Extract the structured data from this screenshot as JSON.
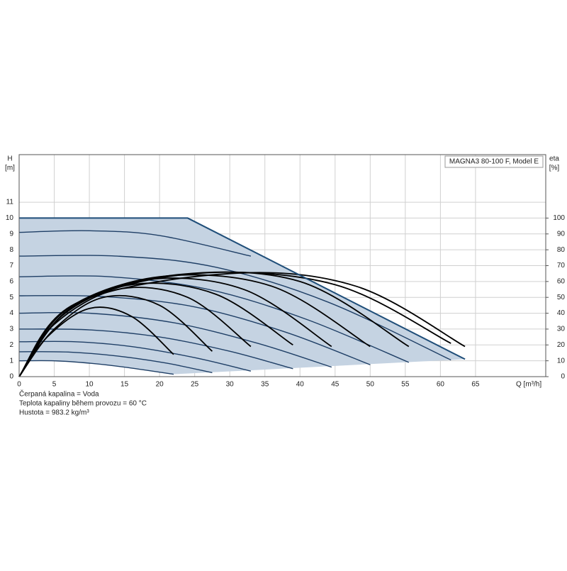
{
  "chart_data": {
    "type": "line",
    "title": "MAGNA3 80-100 F, Model E",
    "y_label": "H",
    "y_unit": "[m]",
    "y2_label": "eta",
    "y2_unit": "[%]",
    "x_label": "Q [m³/h]",
    "notes": [
      "Čerpaná kapalina = Voda",
      "Teplota kapaliny během provozu = 60 °C",
      "Hustota = 983.2 kg/m³"
    ],
    "xlim": [
      0,
      75
    ],
    "xticks": [
      0,
      5,
      10,
      15,
      20,
      25,
      30,
      35,
      40,
      45,
      50,
      55,
      60,
      65
    ],
    "ylim": [
      0,
      14
    ],
    "yticks": [
      0,
      1,
      2,
      3,
      4,
      5,
      6,
      7,
      8,
      9,
      10,
      11
    ],
    "y2lim": [
      0,
      140
    ],
    "y2ticks": [
      0,
      10,
      20,
      30,
      40,
      50,
      60,
      70,
      80,
      90,
      100
    ],
    "grid": true,
    "envelope": {
      "color": "#c5d3e2",
      "x": [
        0,
        24,
        63.5,
        22,
        15,
        10,
        5,
        0
      ],
      "values": [
        10,
        10,
        1.1,
        0.15,
        0.6,
        0.85,
        1.0,
        1.0
      ]
    },
    "boundary": {
      "color": "#1f4e79",
      "x": [
        0,
        24,
        63.5
      ],
      "values": [
        10,
        10,
        1.1
      ]
    },
    "series": [
      {
        "color": "#1f3f66",
        "x": [
          0,
          5,
          10,
          15,
          22
        ],
        "values": [
          1.0,
          1.0,
          0.85,
          0.6,
          0.15
        ]
      },
      {
        "color": "#1f3f66",
        "x": [
          0,
          7,
          14,
          21,
          27.5
        ],
        "values": [
          1.57,
          1.55,
          1.3,
          0.85,
          0.25
        ]
      },
      {
        "color": "#1f3f66",
        "x": [
          0,
          8,
          16,
          25,
          33
        ],
        "values": [
          2.2,
          2.2,
          1.9,
          1.2,
          0.35
        ]
      },
      {
        "color": "#1f3f66",
        "x": [
          0,
          10,
          20,
          30,
          39
        ],
        "values": [
          3.0,
          2.95,
          2.5,
          1.6,
          0.5
        ]
      },
      {
        "color": "#1f3f66",
        "x": [
          0,
          10,
          22,
          34,
          44.5
        ],
        "values": [
          4.0,
          4.0,
          3.4,
          2.1,
          0.6
        ]
      },
      {
        "color": "#1f3f66",
        "x": [
          0,
          12,
          25,
          38,
          50
        ],
        "values": [
          5.1,
          5.05,
          4.4,
          2.8,
          0.75
        ]
      },
      {
        "color": "#1f3f66",
        "x": [
          0,
          13,
          27,
          41,
          55.5
        ],
        "values": [
          6.3,
          6.3,
          5.5,
          3.6,
          0.9
        ]
      },
      {
        "color": "#1f3f66",
        "x": [
          0,
          14,
          28,
          44,
          61.5
        ],
        "values": [
          7.6,
          7.6,
          6.9,
          4.7,
          1.05
        ]
      },
      {
        "color": "#1f3f66",
        "x": [
          0,
          10,
          20,
          33
        ],
        "values": [
          9.1,
          9.2,
          8.9,
          7.6
        ]
      },
      {
        "color": "#000000",
        "axis": "y2",
        "x": [
          0,
          4,
          10,
          16,
          22
        ],
        "values": [
          0,
          25,
          43,
          38,
          14
        ]
      },
      {
        "color": "#000000",
        "axis": "y2",
        "x": [
          0,
          5,
          12,
          20,
          27.5
        ],
        "values": [
          0,
          30,
          50,
          45,
          16
        ]
      },
      {
        "color": "#000000",
        "axis": "y2",
        "x": [
          0,
          5,
          14,
          24,
          33
        ],
        "values": [
          0,
          33,
          55,
          50,
          19
        ]
      },
      {
        "color": "#000000",
        "axis": "y2",
        "x": [
          0,
          6,
          16,
          28,
          39
        ],
        "values": [
          0,
          38,
          58,
          52,
          20
        ]
      },
      {
        "color": "#000000",
        "axis": "y2",
        "x": [
          0,
          6,
          18,
          32,
          44.5
        ],
        "values": [
          0,
          40,
          61,
          55,
          19
        ]
      },
      {
        "color": "#000000",
        "axis": "y2",
        "x": [
          0,
          7,
          20,
          36,
          50
        ],
        "values": [
          0,
          42,
          63,
          57,
          19
        ]
      },
      {
        "color": "#000000",
        "axis": "y2",
        "x": [
          0,
          7,
          22,
          40,
          55.5
        ],
        "values": [
          0,
          43,
          64,
          60,
          19
        ]
      },
      {
        "color": "#000000",
        "axis": "y2",
        "x": [
          0,
          8,
          25,
          45,
          61.5
        ],
        "values": [
          0,
          45,
          65,
          58,
          21
        ]
      },
      {
        "color": "#000000",
        "axis": "y2",
        "x": [
          0,
          8,
          30,
          48,
          63.5
        ],
        "values": [
          0,
          46,
          65,
          57,
          19
        ]
      }
    ]
  }
}
